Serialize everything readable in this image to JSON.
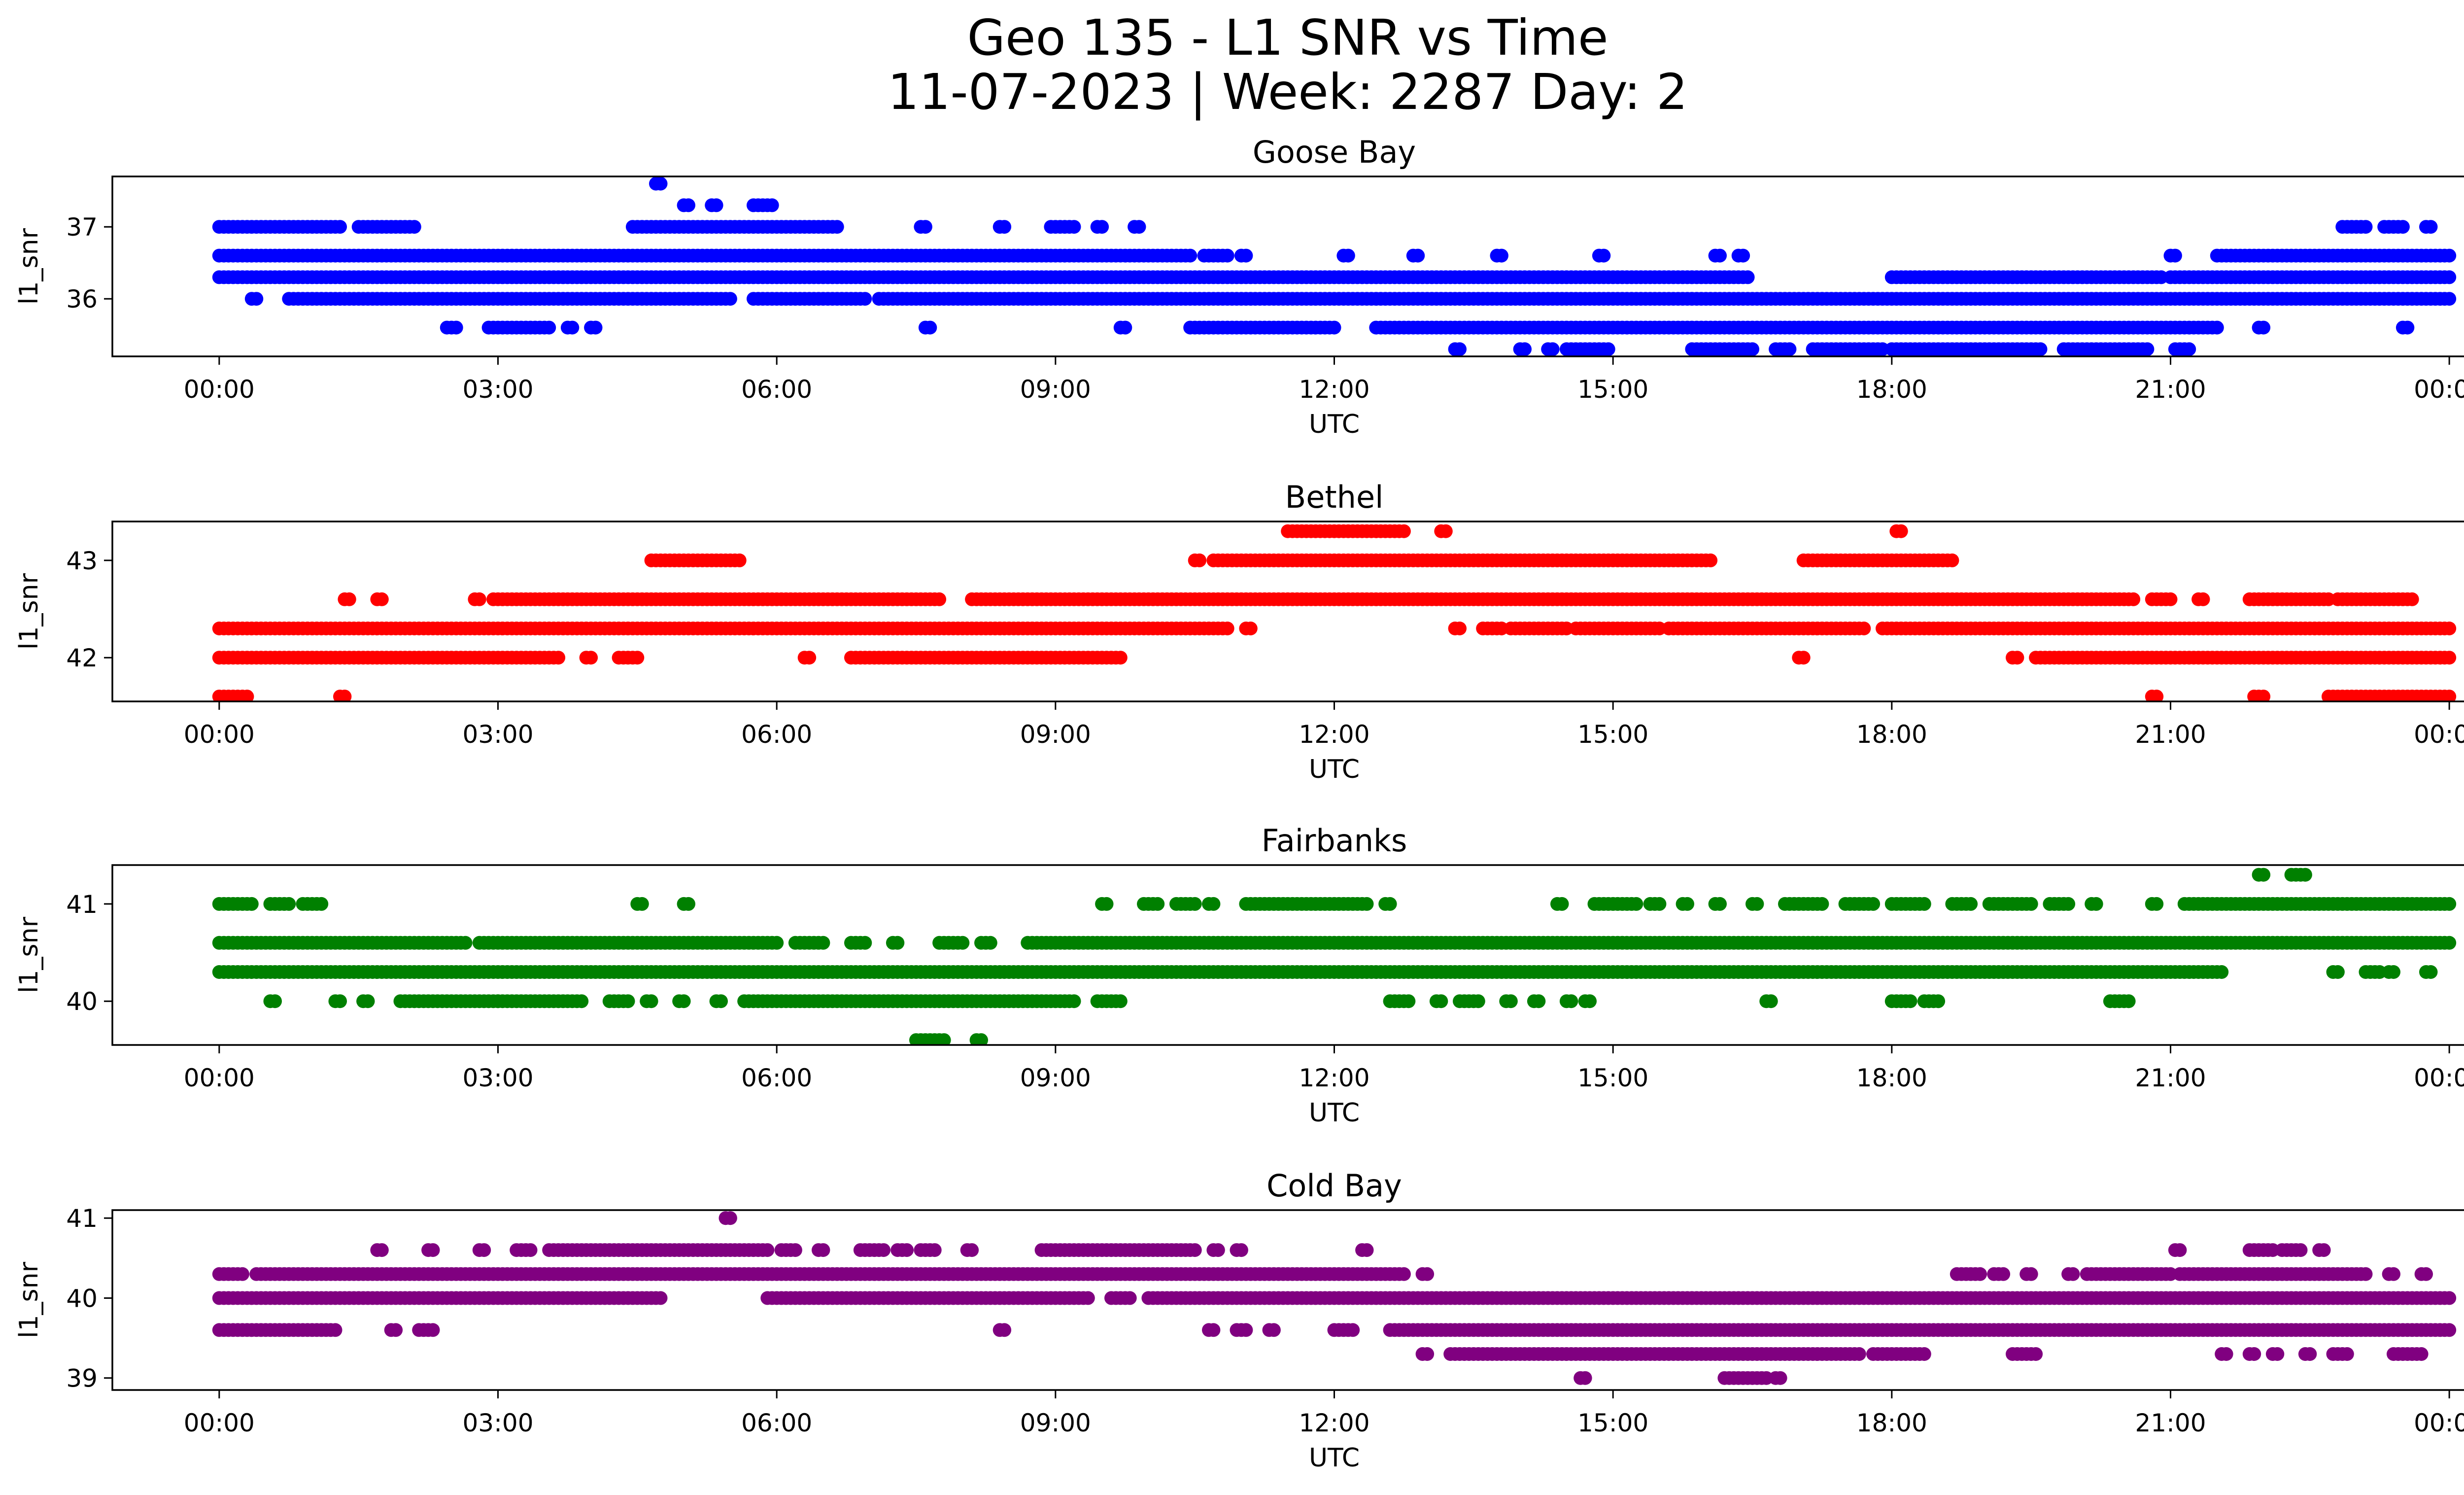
{
  "figure": {
    "title_line1": "Geo 135 - L1 SNR vs Time",
    "title_line2": "11-07-2023 | Week: 2287 Day: 2"
  },
  "chart_data": [
    {
      "type": "scatter",
      "title": "Goose Bay",
      "xlabel": "UTC",
      "ylabel": "l1_snr",
      "color": "#0000ff",
      "x_ticks": [
        "00:00",
        "03:00",
        "06:00",
        "09:00",
        "12:00",
        "15:00",
        "18:00",
        "21:00",
        "00:00"
      ],
      "y_ticks": [
        36,
        37
      ],
      "ylim": [
        35.2,
        37.7
      ],
      "xlim_hours": [
        -1.15,
        25.15
      ],
      "levels": [
        {
          "y": 37.0,
          "segments": [
            [
              0.0,
              1.3
            ],
            [
              1.5,
              2.1
            ],
            [
              4.45,
              6.65
            ],
            [
              7.55,
              7.6
            ],
            [
              8.4,
              8.45
            ],
            [
              8.95,
              9.2
            ],
            [
              9.45,
              9.5
            ],
            [
              9.85,
              9.9
            ],
            [
              22.85,
              23.1
            ],
            [
              23.3,
              23.5
            ],
            [
              23.75,
              23.8
            ]
          ]
        },
        {
          "y": 36.6,
          "segments": [
            [
              0.0,
              10.45
            ],
            [
              10.6,
              10.85
            ],
            [
              11.0,
              11.05
            ],
            [
              12.1,
              12.15
            ],
            [
              12.85,
              12.9
            ],
            [
              13.75,
              13.8
            ],
            [
              14.85,
              14.9
            ],
            [
              16.1,
              16.15
            ],
            [
              16.35,
              16.4
            ],
            [
              21.0,
              21.05
            ],
            [
              21.5,
              24.0
            ]
          ]
        },
        {
          "y": 36.3,
          "segments": [
            [
              0.0,
              16.45
            ],
            [
              18.0,
              20.9
            ],
            [
              21.0,
              24.0
            ]
          ]
        },
        {
          "y": 36.0,
          "segments": [
            [
              0.35,
              0.4
            ],
            [
              0.75,
              5.5
            ],
            [
              5.75,
              6.95
            ],
            [
              7.1,
              24.0
            ]
          ]
        },
        {
          "y": 35.6,
          "segments": [
            [
              2.45,
              2.55
            ],
            [
              2.9,
              3.55
            ],
            [
              3.75,
              3.8
            ],
            [
              4.0,
              4.05
            ],
            [
              7.6,
              7.65
            ],
            [
              9.7,
              9.75
            ],
            [
              10.45,
              12.0
            ],
            [
              12.45,
              21.5
            ],
            [
              21.95,
              22.0
            ],
            [
              23.5,
              23.55
            ]
          ]
        },
        {
          "y": 35.3,
          "segments": [
            [
              13.3,
              13.35
            ],
            [
              14.0,
              14.05
            ],
            [
              14.3,
              14.35
            ],
            [
              14.5,
              14.95
            ],
            [
              15.85,
              16.5
            ],
            [
              16.75,
              16.9
            ],
            [
              17.15,
              17.9
            ],
            [
              18.0,
              19.6
            ],
            [
              19.85,
              20.3
            ],
            [
              20.35,
              20.75
            ],
            [
              21.05,
              21.2
            ]
          ]
        },
        {
          "y": 37.6,
          "segments": [
            [
              4.7,
              4.75
            ]
          ]
        },
        {
          "y": 37.3,
          "segments": [
            [
              5.0,
              5.05
            ],
            [
              5.3,
              5.35
            ],
            [
              5.75,
              5.95
            ]
          ]
        }
      ]
    },
    {
      "type": "scatter",
      "title": "Bethel",
      "xlabel": "UTC",
      "ylabel": "l1_snr",
      "color": "#ff0000",
      "x_ticks": [
        "00:00",
        "03:00",
        "06:00",
        "09:00",
        "12:00",
        "15:00",
        "18:00",
        "21:00",
        "00:00"
      ],
      "y_ticks": [
        42,
        43
      ],
      "ylim": [
        41.55,
        43.4
      ],
      "xlim_hours": [
        -1.15,
        25.15
      ],
      "levels": [
        {
          "y": 43.3,
          "segments": [
            [
              11.5,
              12.75
            ],
            [
              13.15,
              13.2
            ],
            [
              18.05,
              18.1
            ]
          ]
        },
        {
          "y": 43.0,
          "segments": [
            [
              4.65,
              5.6
            ],
            [
              10.5,
              10.55
            ],
            [
              10.7,
              16.05
            ],
            [
              17.05,
              18.65
            ]
          ]
        },
        {
          "y": 42.6,
          "segments": [
            [
              1.35,
              1.4
            ],
            [
              1.7,
              1.75
            ],
            [
              2.75,
              2.8
            ],
            [
              2.95,
              7.75
            ],
            [
              8.1,
              20.6
            ],
            [
              20.8,
              21.0
            ],
            [
              21.3,
              21.35
            ],
            [
              21.85,
              22.7
            ],
            [
              22.8,
              23.6
            ]
          ]
        },
        {
          "y": 42.3,
          "segments": [
            [
              0.0,
              10.85
            ],
            [
              11.05,
              11.1
            ],
            [
              13.3,
              13.35
            ],
            [
              13.6,
              13.8
            ],
            [
              13.9,
              14.5
            ],
            [
              14.6,
              15.5
            ],
            [
              15.6,
              17.7
            ],
            [
              17.9,
              24.0
            ]
          ]
        },
        {
          "y": 42.0,
          "segments": [
            [
              0.0,
              3.65
            ],
            [
              3.95,
              4.0
            ],
            [
              4.3,
              4.5
            ],
            [
              6.3,
              6.35
            ],
            [
              6.8,
              9.7
            ],
            [
              17.0,
              17.05
            ],
            [
              19.3,
              19.35
            ],
            [
              19.55,
              24.0
            ]
          ]
        },
        {
          "y": 41.6,
          "segments": [
            [
              0.0,
              0.3
            ],
            [
              1.3,
              1.35
            ],
            [
              20.8,
              20.85
            ],
            [
              21.9,
              22.0
            ],
            [
              22.7,
              24.0
            ]
          ]
        }
      ]
    },
    {
      "type": "scatter",
      "title": "Fairbanks",
      "xlabel": "UTC",
      "ylabel": "l1_snr",
      "color": "#008000",
      "x_ticks": [
        "00:00",
        "03:00",
        "06:00",
        "09:00",
        "12:00",
        "15:00",
        "18:00",
        "21:00",
        "00:00"
      ],
      "y_ticks": [
        40,
        41
      ],
      "ylim": [
        39.55,
        41.4
      ],
      "xlim_hours": [
        -1.15,
        25.15
      ],
      "levels": [
        {
          "y": 41.3,
          "segments": [
            [
              21.95,
              22.0
            ],
            [
              22.3,
              22.45
            ]
          ]
        },
        {
          "y": 41.0,
          "segments": [
            [
              0.0,
              0.35
            ],
            [
              0.55,
              0.75
            ],
            [
              0.9,
              1.1
            ],
            [
              4.5,
              4.55
            ],
            [
              5.0,
              5.05
            ],
            [
              9.5,
              9.55
            ],
            [
              9.95,
              10.1
            ],
            [
              10.3,
              10.5
            ],
            [
              10.65,
              10.7
            ],
            [
              11.05,
              12.35
            ],
            [
              12.55,
              12.6
            ],
            [
              14.4,
              14.45
            ],
            [
              14.8,
              15.25
            ],
            [
              15.4,
              15.5
            ],
            [
              15.75,
              15.8
            ],
            [
              16.1,
              16.15
            ],
            [
              16.5,
              16.55
            ],
            [
              16.85,
              17.25
            ],
            [
              17.5,
              17.8
            ],
            [
              18.0,
              18.35
            ],
            [
              18.65,
              18.85
            ],
            [
              19.05,
              19.5
            ],
            [
              19.7,
              19.9
            ],
            [
              20.15,
              20.2
            ],
            [
              20.8,
              20.85
            ],
            [
              21.15,
              24.0
            ]
          ]
        },
        {
          "y": 40.6,
          "segments": [
            [
              0.0,
              2.65
            ],
            [
              2.8,
              6.0
            ],
            [
              6.2,
              6.5
            ],
            [
              6.8,
              6.95
            ],
            [
              7.25,
              7.3
            ],
            [
              7.75,
              8.0
            ],
            [
              8.2,
              8.3
            ],
            [
              8.7,
              24.0
            ]
          ]
        },
        {
          "y": 40.3,
          "segments": [
            [
              0.0,
              21.55
            ],
            [
              22.75,
              22.8
            ],
            [
              23.1,
              23.25
            ],
            [
              23.35,
              23.4
            ],
            [
              23.75,
              23.8
            ]
          ]
        },
        {
          "y": 40.0,
          "segments": [
            [
              0.55,
              0.6
            ],
            [
              1.25,
              1.3
            ],
            [
              1.55,
              1.6
            ],
            [
              1.95,
              3.0
            ],
            [
              3.0,
              3.9
            ],
            [
              4.2,
              4.4
            ],
            [
              4.6,
              4.65
            ],
            [
              4.95,
              5.0
            ],
            [
              5.35,
              5.4
            ],
            [
              5.65,
              9.2
            ],
            [
              9.45,
              9.7
            ],
            [
              12.6,
              12.8
            ],
            [
              13.1,
              13.15
            ],
            [
              13.35,
              13.55
            ],
            [
              13.85,
              13.9
            ],
            [
              14.15,
              14.2
            ],
            [
              14.5,
              14.55
            ],
            [
              14.7,
              14.75
            ],
            [
              16.65,
              16.7
            ],
            [
              18.0,
              18.2
            ],
            [
              18.35,
              18.5
            ],
            [
              20.35,
              20.55
            ]
          ]
        },
        {
          "y": 39.6,
          "segments": [
            [
              7.5,
              7.8
            ],
            [
              8.15,
              8.2
            ]
          ]
        }
      ]
    },
    {
      "type": "scatter",
      "title": "Cold Bay",
      "xlabel": "UTC",
      "ylabel": "l1_snr",
      "color": "#800080",
      "x_ticks": [
        "00:00",
        "03:00",
        "06:00",
        "09:00",
        "12:00",
        "15:00",
        "18:00",
        "21:00",
        "00:00"
      ],
      "y_ticks": [
        39,
        40,
        41
      ],
      "ylim": [
        38.85,
        41.1
      ],
      "xlim_hours": [
        -1.15,
        25.15
      ],
      "levels": [
        {
          "y": 41.0,
          "segments": [
            [
              5.45,
              5.5
            ]
          ]
        },
        {
          "y": 40.6,
          "segments": [
            [
              1.7,
              1.75
            ],
            [
              2.25,
              2.3
            ],
            [
              2.8,
              2.85
            ],
            [
              3.2,
              3.35
            ],
            [
              3.55,
              5.9
            ],
            [
              6.05,
              6.2
            ],
            [
              6.45,
              6.5
            ],
            [
              6.9,
              7.15
            ],
            [
              7.3,
              7.4
            ],
            [
              7.55,
              7.7
            ],
            [
              8.05,
              8.1
            ],
            [
              8.85,
              10.5
            ],
            [
              10.7,
              10.75
            ],
            [
              10.95,
              11.0
            ],
            [
              12.3,
              12.35
            ],
            [
              21.05,
              21.1
            ],
            [
              21.85,
              22.1
            ],
            [
              22.2,
              22.4
            ],
            [
              22.6,
              22.65
            ]
          ]
        },
        {
          "y": 40.3,
          "segments": [
            [
              0.0,
              0.25
            ],
            [
              0.4,
              12.75
            ],
            [
              12.95,
              13.0
            ],
            [
              18.7,
              18.95
            ],
            [
              19.1,
              19.2
            ],
            [
              19.45,
              19.5
            ],
            [
              19.9,
              19.95
            ],
            [
              20.1,
              21.0
            ],
            [
              21.1,
              23.1
            ],
            [
              23.35,
              23.4
            ],
            [
              23.7,
              23.75
            ]
          ]
        },
        {
          "y": 40.0,
          "segments": [
            [
              0.0,
              4.75
            ],
            [
              5.9,
              9.35
            ],
            [
              9.6,
              9.8
            ],
            [
              10.0,
              24.0
            ]
          ]
        },
        {
          "y": 39.6,
          "segments": [
            [
              0.0,
              1.25
            ],
            [
              1.85,
              1.9
            ],
            [
              2.15,
              2.3
            ],
            [
              8.4,
              8.45
            ],
            [
              10.65,
              10.7
            ],
            [
              10.95,
              11.05
            ],
            [
              11.3,
              11.35
            ],
            [
              12.0,
              12.2
            ],
            [
              12.6,
              24.0
            ]
          ]
        },
        {
          "y": 39.3,
          "segments": [
            [
              12.95,
              13.0
            ],
            [
              13.25,
              17.65
            ],
            [
              17.8,
              18.35
            ],
            [
              19.3,
              19.55
            ],
            [
              21.55,
              21.6
            ],
            [
              21.85,
              21.9
            ],
            [
              22.1,
              22.15
            ],
            [
              22.45,
              22.5
            ],
            [
              22.75,
              22.9
            ],
            [
              23.4,
              23.7
            ]
          ]
        },
        {
          "y": 39.0,
          "segments": [
            [
              14.65,
              14.7
            ],
            [
              16.2,
              16.65
            ],
            [
              16.75,
              16.8
            ]
          ]
        }
      ]
    }
  ]
}
